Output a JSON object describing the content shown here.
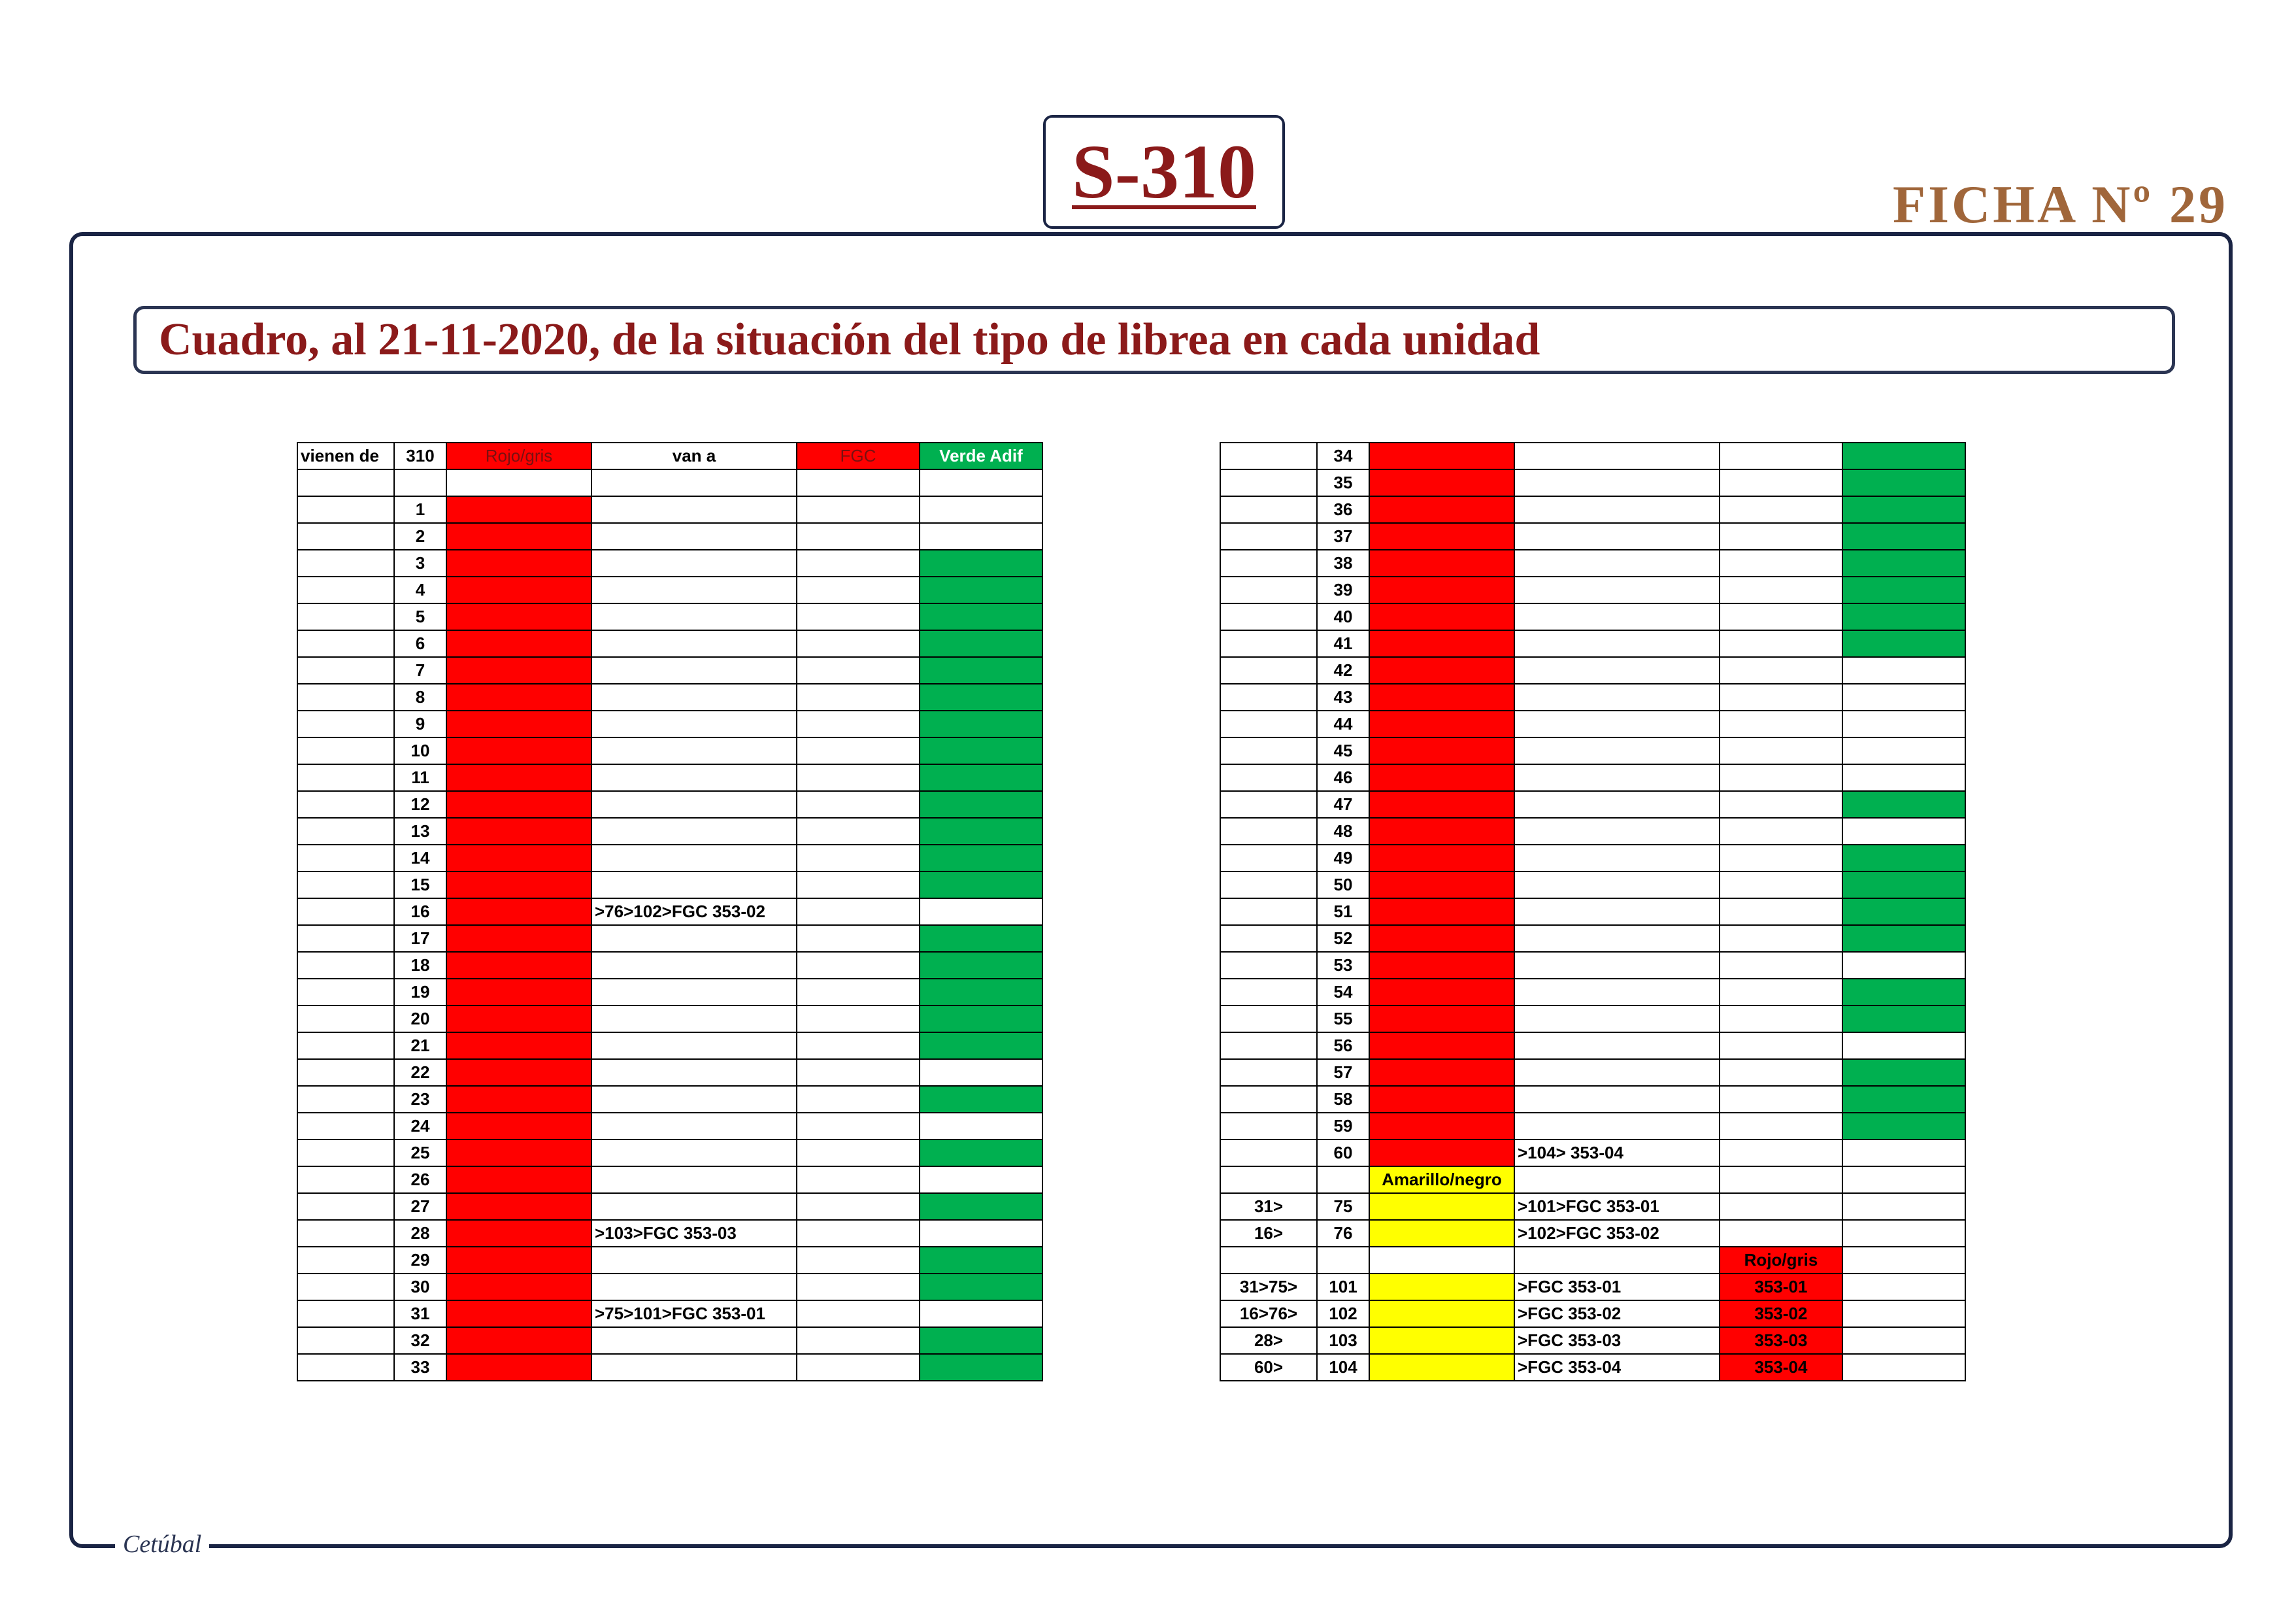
{
  "header": {
    "title": "S-310",
    "ficha": "FICHA Nº 29",
    "subtitle": "Cuadro, al 21-11-2020, de la situación del tipo de librea en cada unidad"
  },
  "footer": {
    "signature": "Cetúbal"
  },
  "colors": {
    "red": "#ff0000",
    "green": "#00b050",
    "yellow": "#ffff00",
    "title": "#8b1a1a",
    "ficha": "#a0663a",
    "frame": "#1a2444"
  },
  "table_left": {
    "headers": [
      "vienen de",
      "310",
      "Rojo/gris",
      "van a",
      "FGC",
      "Verde Adif"
    ],
    "rows": [
      {
        "from": "",
        "unit": "",
        "c2": "",
        "c2_color": "",
        "to": "",
        "fgc": "",
        "fgc_color": "",
        "verde": ""
      },
      {
        "from": "",
        "unit": "1",
        "c2": "",
        "c2_color": "red",
        "to": "",
        "fgc": "",
        "fgc_color": "",
        "verde": ""
      },
      {
        "from": "",
        "unit": "2",
        "c2": "",
        "c2_color": "red",
        "to": "",
        "fgc": "",
        "fgc_color": "",
        "verde": ""
      },
      {
        "from": "",
        "unit": "3",
        "c2": "",
        "c2_color": "red",
        "to": "",
        "fgc": "",
        "fgc_color": "",
        "verde": "green"
      },
      {
        "from": "",
        "unit": "4",
        "c2": "",
        "c2_color": "red",
        "to": "",
        "fgc": "",
        "fgc_color": "",
        "verde": "green"
      },
      {
        "from": "",
        "unit": "5",
        "c2": "",
        "c2_color": "red",
        "to": "",
        "fgc": "",
        "fgc_color": "",
        "verde": "green"
      },
      {
        "from": "",
        "unit": "6",
        "c2": "",
        "c2_color": "red",
        "to": "",
        "fgc": "",
        "fgc_color": "",
        "verde": "green"
      },
      {
        "from": "",
        "unit": "7",
        "c2": "",
        "c2_color": "red",
        "to": "",
        "fgc": "",
        "fgc_color": "",
        "verde": "green"
      },
      {
        "from": "",
        "unit": "8",
        "c2": "",
        "c2_color": "red",
        "to": "",
        "fgc": "",
        "fgc_color": "",
        "verde": "green"
      },
      {
        "from": "",
        "unit": "9",
        "c2": "",
        "c2_color": "red",
        "to": "",
        "fgc": "",
        "fgc_color": "",
        "verde": "green"
      },
      {
        "from": "",
        "unit": "10",
        "c2": "",
        "c2_color": "red",
        "to": "",
        "fgc": "",
        "fgc_color": "",
        "verde": "green"
      },
      {
        "from": "",
        "unit": "11",
        "c2": "",
        "c2_color": "red",
        "to": "",
        "fgc": "",
        "fgc_color": "",
        "verde": "green"
      },
      {
        "from": "",
        "unit": "12",
        "c2": "",
        "c2_color": "red",
        "to": "",
        "fgc": "",
        "fgc_color": "",
        "verde": "green"
      },
      {
        "from": "",
        "unit": "13",
        "c2": "",
        "c2_color": "red",
        "to": "",
        "fgc": "",
        "fgc_color": "",
        "verde": "green"
      },
      {
        "from": "",
        "unit": "14",
        "c2": "",
        "c2_color": "red",
        "to": "",
        "fgc": "",
        "fgc_color": "",
        "verde": "green"
      },
      {
        "from": "",
        "unit": "15",
        "c2": "",
        "c2_color": "red",
        "to": "",
        "fgc": "",
        "fgc_color": "",
        "verde": "green"
      },
      {
        "from": "",
        "unit": "16",
        "c2": "",
        "c2_color": "red",
        "to": ">76>102>FGC 353-02",
        "fgc": "",
        "fgc_color": "",
        "verde": ""
      },
      {
        "from": "",
        "unit": "17",
        "c2": "",
        "c2_color": "red",
        "to": "",
        "fgc": "",
        "fgc_color": "",
        "verde": "green"
      },
      {
        "from": "",
        "unit": "18",
        "c2": "",
        "c2_color": "red",
        "to": "",
        "fgc": "",
        "fgc_color": "",
        "verde": "green"
      },
      {
        "from": "",
        "unit": "19",
        "c2": "",
        "c2_color": "red",
        "to": "",
        "fgc": "",
        "fgc_color": "",
        "verde": "green"
      },
      {
        "from": "",
        "unit": "20",
        "c2": "",
        "c2_color": "red",
        "to": "",
        "fgc": "",
        "fgc_color": "",
        "verde": "green"
      },
      {
        "from": "",
        "unit": "21",
        "c2": "",
        "c2_color": "red",
        "to": "",
        "fgc": "",
        "fgc_color": "",
        "verde": "green"
      },
      {
        "from": "",
        "unit": "22",
        "c2": "",
        "c2_color": "red",
        "to": "",
        "fgc": "",
        "fgc_color": "",
        "verde": ""
      },
      {
        "from": "",
        "unit": "23",
        "c2": "",
        "c2_color": "red",
        "to": "",
        "fgc": "",
        "fgc_color": "",
        "verde": "green"
      },
      {
        "from": "",
        "unit": "24",
        "c2": "",
        "c2_color": "red",
        "to": "",
        "fgc": "",
        "fgc_color": "",
        "verde": ""
      },
      {
        "from": "",
        "unit": "25",
        "c2": "",
        "c2_color": "red",
        "to": "",
        "fgc": "",
        "fgc_color": "",
        "verde": "green"
      },
      {
        "from": "",
        "unit": "26",
        "c2": "",
        "c2_color": "red",
        "to": "",
        "fgc": "",
        "fgc_color": "",
        "verde": ""
      },
      {
        "from": "",
        "unit": "27",
        "c2": "",
        "c2_color": "red",
        "to": "",
        "fgc": "",
        "fgc_color": "",
        "verde": "green"
      },
      {
        "from": "",
        "unit": "28",
        "c2": "",
        "c2_color": "red",
        "to": ">103>FGC 353-03",
        "fgc": "",
        "fgc_color": "",
        "verde": ""
      },
      {
        "from": "",
        "unit": "29",
        "c2": "",
        "c2_color": "red",
        "to": "",
        "fgc": "",
        "fgc_color": "",
        "verde": "green"
      },
      {
        "from": "",
        "unit": "30",
        "c2": "",
        "c2_color": "red",
        "to": "",
        "fgc": "",
        "fgc_color": "",
        "verde": "green"
      },
      {
        "from": "",
        "unit": "31",
        "c2": "",
        "c2_color": "red",
        "to": ">75>101>FGC 353-01",
        "fgc": "",
        "fgc_color": "",
        "verde": ""
      },
      {
        "from": "",
        "unit": "32",
        "c2": "",
        "c2_color": "red",
        "to": "",
        "fgc": "",
        "fgc_color": "",
        "verde": "green"
      },
      {
        "from": "",
        "unit": "33",
        "c2": "",
        "c2_color": "red",
        "to": "",
        "fgc": "",
        "fgc_color": "",
        "verde": "green"
      }
    ]
  },
  "table_right": {
    "rows": [
      {
        "from": "",
        "unit": "34",
        "c2": "",
        "c2_color": "red",
        "to": "",
        "fgc": "",
        "fgc_color": "",
        "verde": "green"
      },
      {
        "from": "",
        "unit": "35",
        "c2": "",
        "c2_color": "red",
        "to": "",
        "fgc": "",
        "fgc_color": "",
        "verde": "green"
      },
      {
        "from": "",
        "unit": "36",
        "c2": "",
        "c2_color": "red",
        "to": "",
        "fgc": "",
        "fgc_color": "",
        "verde": "green"
      },
      {
        "from": "",
        "unit": "37",
        "c2": "",
        "c2_color": "red",
        "to": "",
        "fgc": "",
        "fgc_color": "",
        "verde": "green"
      },
      {
        "from": "",
        "unit": "38",
        "c2": "",
        "c2_color": "red",
        "to": "",
        "fgc": "",
        "fgc_color": "",
        "verde": "green"
      },
      {
        "from": "",
        "unit": "39",
        "c2": "",
        "c2_color": "red",
        "to": "",
        "fgc": "",
        "fgc_color": "",
        "verde": "green"
      },
      {
        "from": "",
        "unit": "40",
        "c2": "",
        "c2_color": "red",
        "to": "",
        "fgc": "",
        "fgc_color": "",
        "verde": "green"
      },
      {
        "from": "",
        "unit": "41",
        "c2": "",
        "c2_color": "red",
        "to": "",
        "fgc": "",
        "fgc_color": "",
        "verde": "green"
      },
      {
        "from": "",
        "unit": "42",
        "c2": "",
        "c2_color": "red",
        "to": "",
        "fgc": "",
        "fgc_color": "",
        "verde": ""
      },
      {
        "from": "",
        "unit": "43",
        "c2": "",
        "c2_color": "red",
        "to": "",
        "fgc": "",
        "fgc_color": "",
        "verde": ""
      },
      {
        "from": "",
        "unit": "44",
        "c2": "",
        "c2_color": "red",
        "to": "",
        "fgc": "",
        "fgc_color": "",
        "verde": ""
      },
      {
        "from": "",
        "unit": "45",
        "c2": "",
        "c2_color": "red",
        "to": "",
        "fgc": "",
        "fgc_color": "",
        "verde": ""
      },
      {
        "from": "",
        "unit": "46",
        "c2": "",
        "c2_color": "red",
        "to": "",
        "fgc": "",
        "fgc_color": "",
        "verde": ""
      },
      {
        "from": "",
        "unit": "47",
        "c2": "",
        "c2_color": "red",
        "to": "",
        "fgc": "",
        "fgc_color": "",
        "verde": "green"
      },
      {
        "from": "",
        "unit": "48",
        "c2": "",
        "c2_color": "red",
        "to": "",
        "fgc": "",
        "fgc_color": "",
        "verde": ""
      },
      {
        "from": "",
        "unit": "49",
        "c2": "",
        "c2_color": "red",
        "to": "",
        "fgc": "",
        "fgc_color": "",
        "verde": "green"
      },
      {
        "from": "",
        "unit": "50",
        "c2": "",
        "c2_color": "red",
        "to": "",
        "fgc": "",
        "fgc_color": "",
        "verde": "green"
      },
      {
        "from": "",
        "unit": "51",
        "c2": "",
        "c2_color": "red",
        "to": "",
        "fgc": "",
        "fgc_color": "",
        "verde": "green"
      },
      {
        "from": "",
        "unit": "52",
        "c2": "",
        "c2_color": "red",
        "to": "",
        "fgc": "",
        "fgc_color": "",
        "verde": "green"
      },
      {
        "from": "",
        "unit": "53",
        "c2": "",
        "c2_color": "red",
        "to": "",
        "fgc": "",
        "fgc_color": "",
        "verde": ""
      },
      {
        "from": "",
        "unit": "54",
        "c2": "",
        "c2_color": "red",
        "to": "",
        "fgc": "",
        "fgc_color": "",
        "verde": "green"
      },
      {
        "from": "",
        "unit": "55",
        "c2": "",
        "c2_color": "red",
        "to": "",
        "fgc": "",
        "fgc_color": "",
        "verde": "green"
      },
      {
        "from": "",
        "unit": "56",
        "c2": "",
        "c2_color": "red",
        "to": "",
        "fgc": "",
        "fgc_color": "",
        "verde": ""
      },
      {
        "from": "",
        "unit": "57",
        "c2": "",
        "c2_color": "red",
        "to": "",
        "fgc": "",
        "fgc_color": "",
        "verde": "green"
      },
      {
        "from": "",
        "unit": "58",
        "c2": "",
        "c2_color": "red",
        "to": "",
        "fgc": "",
        "fgc_color": "",
        "verde": "green"
      },
      {
        "from": "",
        "unit": "59",
        "c2": "",
        "c2_color": "red",
        "to": "",
        "fgc": "",
        "fgc_color": "",
        "verde": "green"
      },
      {
        "from": "",
        "unit": "60",
        "c2": "",
        "c2_color": "red",
        "to": ">104> 353-04",
        "fgc": "",
        "fgc_color": "",
        "verde": ""
      },
      {
        "from": "",
        "unit": "",
        "c2": "Amarillo/negro",
        "c2_color": "yellow",
        "to": "",
        "fgc": "",
        "fgc_color": "",
        "verde": ""
      },
      {
        "from": "31>",
        "unit": "75",
        "c2": "",
        "c2_color": "yellow",
        "to": ">101>FGC 353-01",
        "fgc": "",
        "fgc_color": "",
        "verde": ""
      },
      {
        "from": "16>",
        "unit": "76",
        "c2": "",
        "c2_color": "yellow",
        "to": ">102>FGC 353-02",
        "fgc": "",
        "fgc_color": "",
        "verde": ""
      },
      {
        "from": "",
        "unit": "",
        "c2": "",
        "c2_color": "",
        "to": "",
        "fgc": "Rojo/gris",
        "fgc_color": "red",
        "verde": ""
      },
      {
        "from": "31>75>",
        "unit": "101",
        "c2": "",
        "c2_color": "yellow",
        "to": ">FGC 353-01",
        "fgc": "353-01",
        "fgc_color": "red",
        "verde": ""
      },
      {
        "from": "16>76>",
        "unit": "102",
        "c2": "",
        "c2_color": "yellow",
        "to": ">FGC 353-02",
        "fgc": "353-02",
        "fgc_color": "red",
        "verde": ""
      },
      {
        "from": "28>",
        "unit": "103",
        "c2": "",
        "c2_color": "yellow",
        "to": ">FGC 353-03",
        "fgc": "353-03",
        "fgc_color": "red",
        "verde": ""
      },
      {
        "from": "60>",
        "unit": "104",
        "c2": "",
        "c2_color": "yellow",
        "to": ">FGC 353-04",
        "fgc": "353-04",
        "fgc_color": "red",
        "verde": ""
      }
    ]
  }
}
